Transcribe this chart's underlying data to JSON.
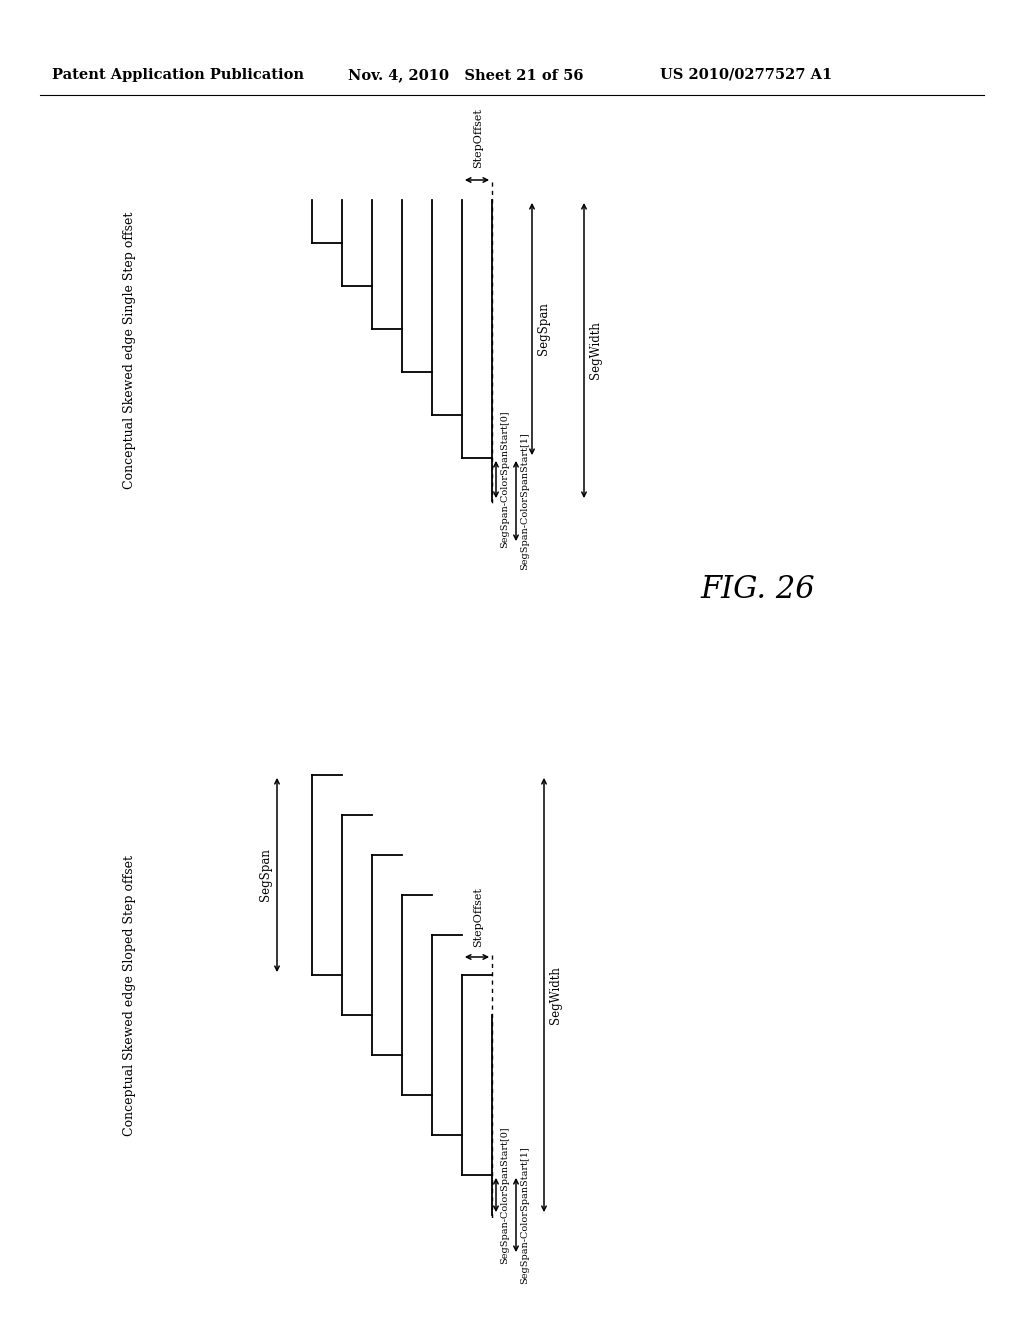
{
  "bg_color": "#ffffff",
  "header_left": "Patent Application Publication",
  "header_mid": "Nov. 4, 2010   Sheet 21 of 56",
  "header_right": "US 2010/0277527 A1",
  "fig_label": "FIG. 26",
  "diagram1": {
    "title": "Conceptual Skewed edge Single Step offset",
    "step_label": "StepOffset",
    "seg_span_label": "SegSpan",
    "seg_width_label": "SegWidth",
    "css0_label": "SegSpan-ColorSpanStart[0]",
    "css1_label": "SegSpan-ColorSpanStart[1]"
  },
  "diagram2": {
    "title": "Conceptual Skewed edge Sloped Step offset",
    "step_label": "StepOffset",
    "seg_span_label": "SegSpan",
    "seg_width_label": "SegWidth",
    "css0_label": "SegSpan-ColorSpanStart[0]",
    "css1_label": "SegSpan-ColorSpanStart[1]"
  }
}
